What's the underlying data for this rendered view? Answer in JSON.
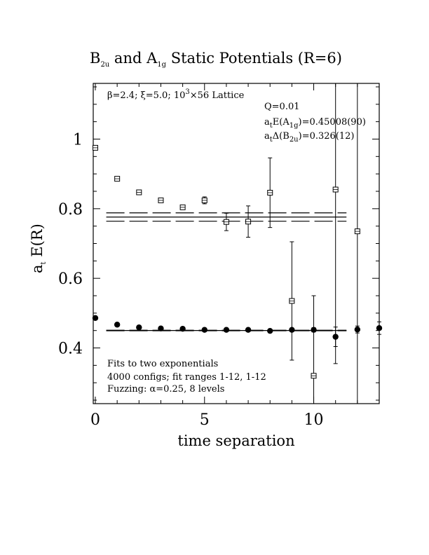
{
  "chart_data": {
    "type": "scatter",
    "title": {
      "prefix": "B",
      "sub1": "2u",
      "middle": " and A",
      "sub2": "1g",
      "suffix": " Static Potentials (R=6)"
    },
    "xlabel": "time separation",
    "ylabel": {
      "prefix": "a",
      "sub": "t",
      "suffix": " E(R)"
    },
    "xlim": [
      0,
      13
    ],
    "ylim": [
      0.24,
      1.16
    ],
    "x_ticks": [
      0,
      5,
      10
    ],
    "y_ticks": [
      0.4,
      0.6,
      0.8,
      1
    ],
    "y_tick_labels": [
      "0.4",
      "0.6",
      "0.8",
      "1"
    ],
    "grid": false,
    "annotations": {
      "lattice": {
        "beta": "β=2.4;  ξ=5.0;  10",
        "sup": "3",
        "rest": "×56 Lattice"
      },
      "q": "Q=0.01",
      "fit_a1g": {
        "prefix": "a",
        "sub1": "t",
        "mid": "E(A",
        "sub2": "1g",
        "val": ")=0.45008(90)"
      },
      "fit_b2u": {
        "prefix": "a",
        "sub1": "t",
        "mid": "Δ(B",
        "sub2": "2u",
        "val": ")=0.326(12)"
      },
      "fits": "Fits to two exponentials",
      "configs": "4000 configs; fit ranges 1-12, 1-12",
      "fuzzing": "Fuzzing: α=0.25, 8 levels"
    },
    "series": [
      {
        "marker": "open-square",
        "x": [
          0,
          1,
          2,
          3,
          4,
          5,
          6,
          7,
          8,
          9,
          10,
          11,
          12
        ],
        "y": [
          0.975,
          0.886,
          0.847,
          0.824,
          0.804,
          0.824,
          0.762,
          0.763,
          0.846,
          0.535,
          0.32,
          0.855,
          0.735
        ],
        "err": [
          0.003,
          0.003,
          0.004,
          0.005,
          0.005,
          0.01,
          0.025,
          0.045,
          0.1,
          0.17,
          0.23,
          0.5,
          0.5
        ]
      },
      {
        "marker": "filled-circle",
        "x": [
          0,
          1,
          2,
          3,
          4,
          5,
          6,
          7,
          8,
          9,
          10,
          11,
          12,
          13
        ],
        "y": [
          0.486,
          0.467,
          0.459,
          0.456,
          0.455,
          0.452,
          0.452,
          0.452,
          0.449,
          0.452,
          0.452,
          0.432,
          0.453,
          0.457
        ],
        "err": [
          0.002,
          0.002,
          0.002,
          0.002,
          0.002,
          0.002,
          0.002,
          0.003,
          0.003,
          0.004,
          0.006,
          0.028,
          0.01,
          0.018
        ]
      }
    ],
    "fit_bands": [
      {
        "x_range": [
          0.5,
          11.5
        ],
        "center": 0.776,
        "lower": 0.764,
        "upper": 0.788,
        "style": "dashed edges, solid center"
      },
      {
        "x_range": [
          0.5,
          11.5
        ],
        "center": 0.4501,
        "lower": 0.4492,
        "upper": 0.451,
        "style": "dashed edges, solid center"
      }
    ]
  }
}
